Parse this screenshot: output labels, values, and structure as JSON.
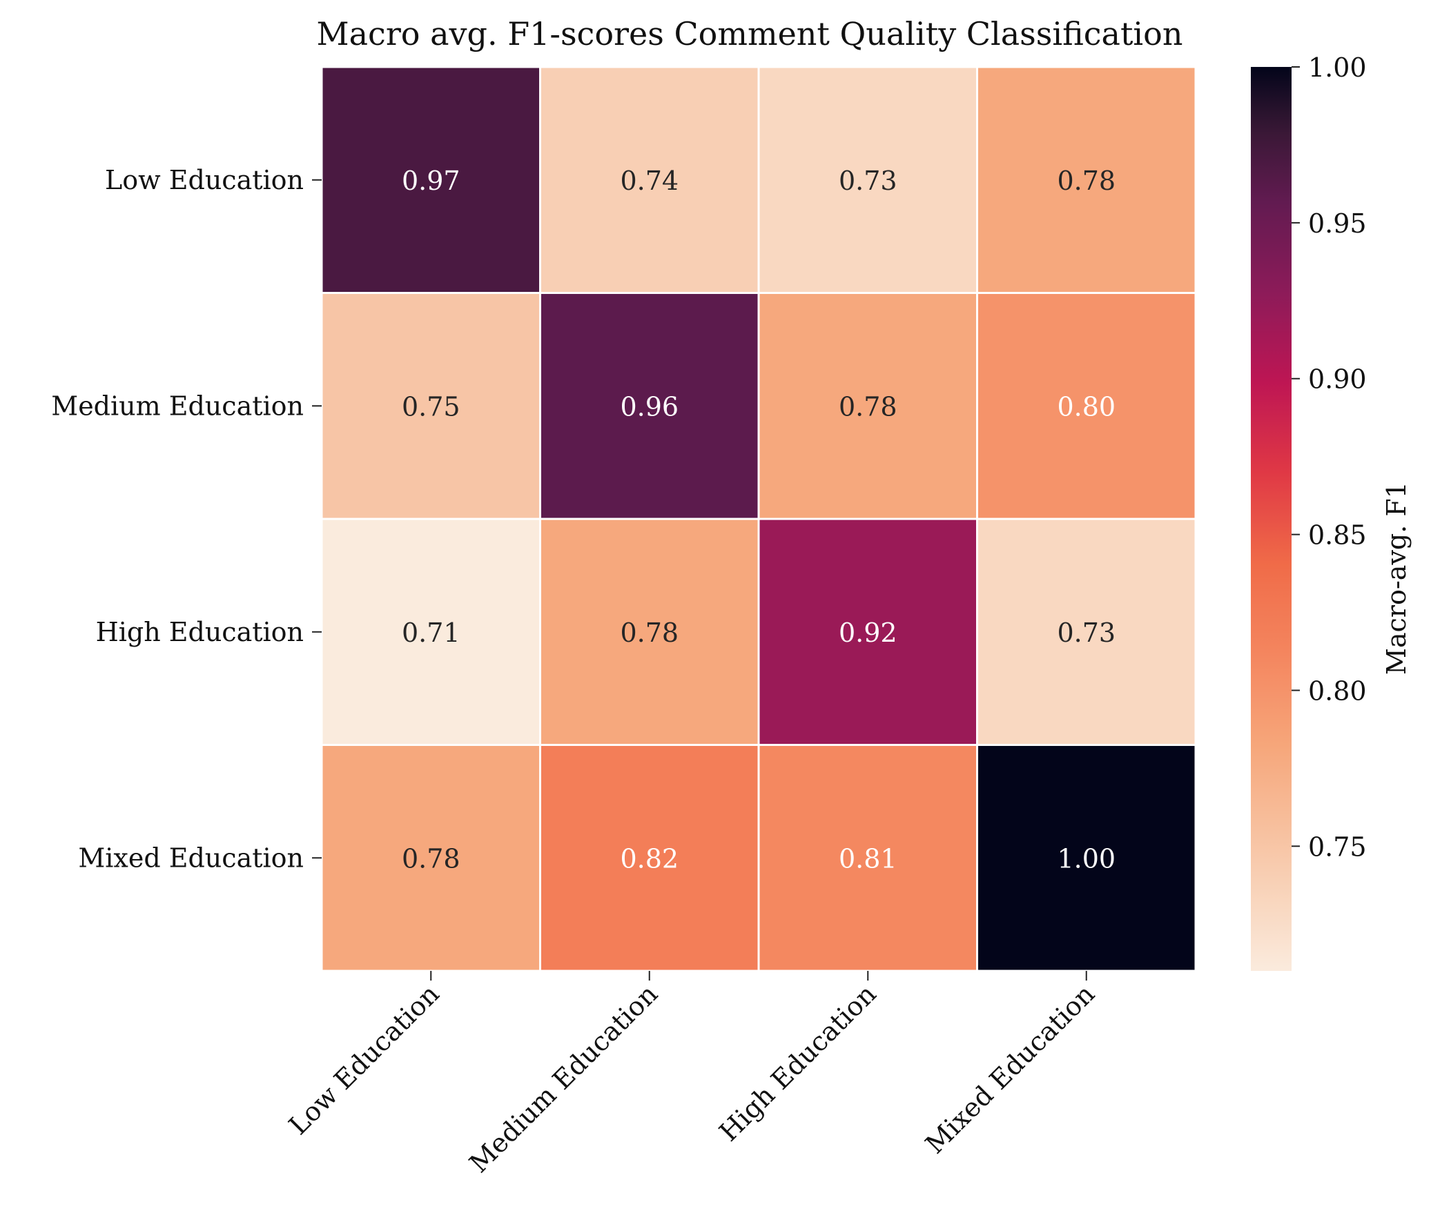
{
  "chart_data": {
    "type": "heatmap",
    "title": "Macro avg. F1-scores Comment Quality Classification",
    "rows": [
      "Low Education",
      "Medium Education",
      "High Education",
      "Mixed Education"
    ],
    "columns": [
      "Low Education",
      "Medium Education",
      "High Education",
      "Mixed Education"
    ],
    "values": [
      [
        0.97,
        0.74,
        0.73,
        0.78
      ],
      [
        0.75,
        0.96,
        0.78,
        0.8
      ],
      [
        0.71,
        0.78,
        0.92,
        0.73
      ],
      [
        0.78,
        0.82,
        0.81,
        1.0
      ]
    ],
    "value_format": "2 decimals",
    "colorbar": {
      "label": "Macro-avg. F1",
      "range": [
        0.71,
        1.0
      ],
      "ticks": [
        "1.00",
        "0.95",
        "0.90",
        "0.85",
        "0.80",
        "0.75"
      ],
      "colormap": "rocket_r"
    },
    "grid": false
  }
}
